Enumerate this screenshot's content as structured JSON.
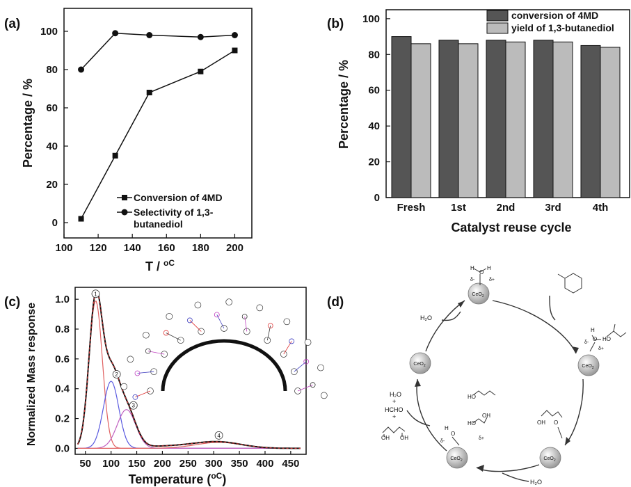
{
  "chart_data": [
    {
      "panel": "(a)",
      "type": "line",
      "xlabel": "T / ",
      "xlabel_unit": "oC",
      "ylabel": "Percentage / %",
      "xlim": [
        100,
        210
      ],
      "ylim": [
        -8,
        112
      ],
      "xticks": [
        "100",
        "120",
        "140",
        "160",
        "180",
        "200"
      ],
      "yticks": [
        "0",
        "20",
        "40",
        "60",
        "80",
        "100"
      ],
      "legend_position": "bottom-right",
      "series": [
        {
          "name": "Conversion of 4MD",
          "marker": "square",
          "x": [
            110,
            130,
            150,
            180,
            200
          ],
          "y": [
            2,
            35,
            68,
            79,
            90
          ]
        },
        {
          "name": "Selectivity of 1,3-butanediol",
          "name_line1": "Selectivity of 1,3-",
          "name_line2": "butanediol",
          "marker": "circle",
          "x": [
            110,
            130,
            150,
            180,
            200
          ],
          "y": [
            80,
            99,
            98,
            97,
            98
          ]
        }
      ]
    },
    {
      "panel": "(b)",
      "type": "bar",
      "xlabel": "Catalyst reuse cycle",
      "ylabel": "Percentage / %",
      "ylim": [
        0,
        105
      ],
      "yticks": [
        "0",
        "20",
        "40",
        "60",
        "80",
        "100"
      ],
      "categories": [
        "Fresh",
        "1st",
        "2nd",
        "3rd",
        "4th"
      ],
      "legend_position": "top-right",
      "series": [
        {
          "name": "conversion of 4MD",
          "color": "#555555",
          "values": [
            90,
            88,
            88,
            88,
            85
          ]
        },
        {
          "name": "yield of 1,3-butanediol",
          "color": "#bbbbbb",
          "values": [
            86,
            86,
            87,
            87,
            84
          ]
        }
      ]
    },
    {
      "panel": "(c)",
      "type": "line",
      "xlabel": "Temperature (",
      "xlabel_unit": "oC",
      "xlabel_end": ")",
      "ylabel": "Normalized Mass response",
      "xlim": [
        30,
        480
      ],
      "ylim": [
        -0.04,
        1.08
      ],
      "xticks": [
        "50",
        "100",
        "150",
        "200",
        "250",
        "300",
        "350",
        "400",
        "450"
      ],
      "yticks": [
        "0.0",
        "0.2",
        "0.4",
        "0.6",
        "0.8",
        "1.0"
      ],
      "peak_labels": [
        "1",
        "2",
        "3",
        "4"
      ],
      "peaks": [
        {
          "label": "1",
          "center": 70,
          "height": 0.99,
          "width": 13,
          "color": "#e06060"
        },
        {
          "label": "2",
          "center": 100,
          "height": 0.45,
          "width": 15,
          "color": "#5a5ae0"
        },
        {
          "label": "3",
          "center": 130,
          "height": 0.26,
          "width": 18,
          "color": "#c060c0"
        },
        {
          "label": "4",
          "center": 310,
          "height": 0.04,
          "width": 45,
          "color": "#e06060"
        }
      ]
    }
  ],
  "figure": {
    "panel_d_label": "(d)",
    "ceo2_label": "CeO",
    "ceo2_sub": "2",
    "species": {
      "h2o": "H₂O",
      "hcho": "HCHO",
      "plus": "+",
      "oh": "OH",
      "ho": "HO",
      "h": "H",
      "o": "O",
      "delta_minus": "δ-",
      "delta_plus": "δ+"
    }
  }
}
